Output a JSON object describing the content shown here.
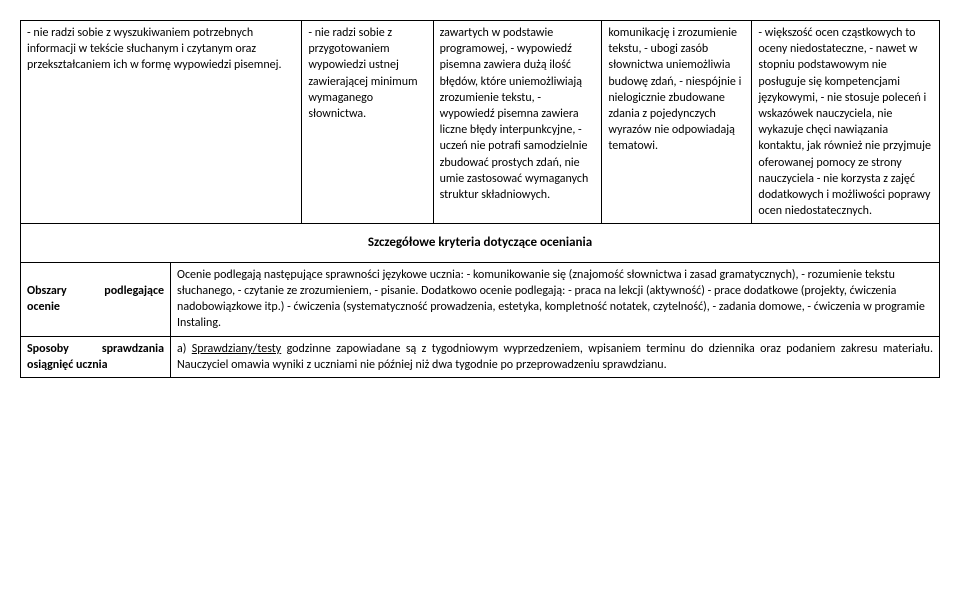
{
  "topRow": {
    "c1": "- nie radzi sobie z wyszukiwaniem potrzebnych informacji w tekście słuchanym i czytanym oraz przekształcaniem ich w formę wypowiedzi pisemnej.",
    "c2": "- nie radzi sobie z przygotowaniem wypowiedzi ustnej zawierającej minimum wymaganego słownictwa.",
    "c3": "zawartych w podstawie programowej,\n- wypowiedź pisemna zawiera dużą ilość błędów, które uniemożliwiają zrozumienie tekstu,\n- wypowiedź pisemna zawiera liczne błędy interpunkcyjne,\n- uczeń nie potrafi samodzielnie zbudować prostych zdań, nie umie zastosować wymaganych struktur składniowych.",
    "c4": "komunikację i zrozumienie tekstu,\n- ubogi zasób słownictwa uniemożliwia budowę zdań,\n- niespójnie i nielogicznie zbudowane zdania z pojedynczych wyrazów nie odpowiadają tematowi.",
    "c5": "- większość ocen cząstkowych to oceny niedostateczne,\n- nawet w stopniu podstawowym nie posługuje się kompetencjami językowymi,\n- nie stosuje poleceń i wskazówek nauczyciela, nie wykazuje chęci nawiązania kontaktu, jak również nie przyjmuje oferowanej pomocy ze strony nauczyciela\n- nie korzysta z zajęć dodatkowych i możliwości poprawy ocen niedostatecznych."
  },
  "sectionHeader": "Szczegółowe kryteria dotyczące oceniania",
  "row2": {
    "label": "Obszary podlegające ocenie",
    "body": "Ocenie podlegają następujące sprawności językowe ucznia:\n- komunikowanie się (znajomość słownictwa i zasad gramatycznych),\n- rozumienie tekstu słuchanego,\n- czytanie ze zrozumieniem,\n- pisanie.\nDodatkowo ocenie podlegają:\n- praca na lekcji (aktywność)\n- prace dodatkowe (projekty, ćwiczenia nadobowiązkowe itp.)\n - ćwiczenia (systematyczność prowadzenia, estetyka, kompletność notatek, czytelność),\n- zadania domowe,\n- ćwiczenia w programie Instaling."
  },
  "row3": {
    "label": "Sposoby sprawdzania osiągnięć ucznia",
    "prefix": "a) ",
    "underlined": "Sprawdziany/testy",
    "rest": " godzinne zapowiadane są z tygodniowym wyprzedzeniem, wpisaniem terminu do dziennika oraz podaniem zakresu materiału. Nauczyciel omawia wyniki z uczniami nie później niż dwa tygodnie po przeprowadzeniu sprawdzianu."
  },
  "layout": {
    "col1_pct": 16,
    "col2_pct": 14,
    "col3_pct": 18,
    "col4_pct": 16,
    "col5_pct": 20,
    "label_pct": 16
  }
}
